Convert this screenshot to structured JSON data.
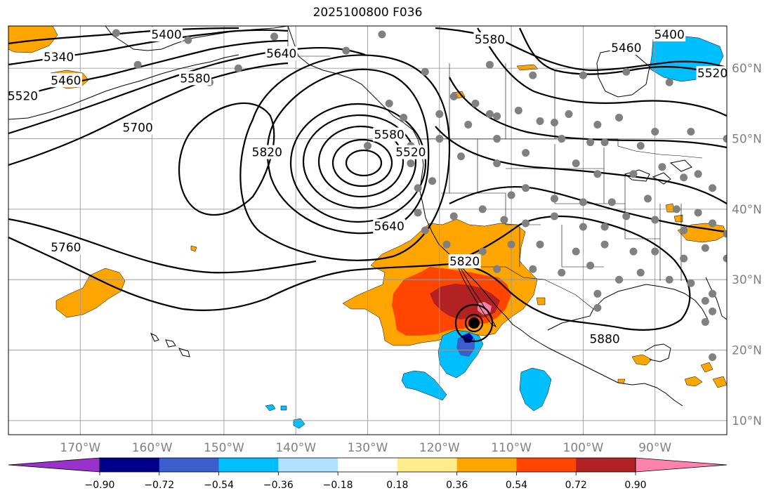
{
  "title": "2025100800 F036",
  "map": {
    "lon_range": [
      -180,
      -80
    ],
    "lat_range": [
      8,
      66
    ],
    "lat_labels": [
      {
        "lat": 60,
        "text": "60°N"
      },
      {
        "lat": 50,
        "text": "50°N"
      },
      {
        "lat": 40,
        "text": "40°N"
      },
      {
        "lat": 30,
        "text": "30°N"
      },
      {
        "lat": 20,
        "text": "20°N"
      },
      {
        "lat": 10,
        "text": "10°N"
      }
    ],
    "lon_labels": [
      {
        "lon": -170,
        "text": "170°W"
      },
      {
        "lon": -160,
        "text": "160°W"
      },
      {
        "lon": -150,
        "text": "150°W"
      },
      {
        "lon": -140,
        "text": "140°W"
      },
      {
        "lon": -130,
        "text": "130°W"
      },
      {
        "lon": -120,
        "text": "120°W"
      },
      {
        "lon": -110,
        "text": "110°W"
      },
      {
        "lon": -100,
        "text": "100°W"
      },
      {
        "lon": -90,
        "text": "90°W"
      }
    ],
    "contour_labels": [
      {
        "text": "5340",
        "lon": -173,
        "lat": 61.5
      },
      {
        "text": "5400",
        "lon": -158,
        "lat": 64.7
      },
      {
        "text": "5400",
        "lon": -88,
        "lat": 64.7
      },
      {
        "text": "5460",
        "lon": -172,
        "lat": 58.2
      },
      {
        "text": "5460",
        "lon": -94,
        "lat": 62.8
      },
      {
        "text": "5520",
        "lon": -178,
        "lat": 56
      },
      {
        "text": "5520",
        "lon": -82,
        "lat": 59.2
      },
      {
        "text": "5580",
        "lon": -113,
        "lat": 64
      },
      {
        "text": "5580",
        "lon": -154,
        "lat": 58.5
      },
      {
        "text": "5580",
        "lon": -127,
        "lat": 50.5
      },
      {
        "text": "5640",
        "lon": -142,
        "lat": 62
      },
      {
        "text": "5640",
        "lon": -127,
        "lat": 37.5
      },
      {
        "text": "5700",
        "lon": -162,
        "lat": 51.5
      },
      {
        "text": "5760",
        "lon": -172,
        "lat": 34.5
      },
      {
        "text": "5820",
        "lon": -144,
        "lat": 48
      },
      {
        "text": "5820",
        "lon": -116.5,
        "lat": 32.5
      },
      {
        "text": "5880",
        "lon": -97,
        "lat": 21.5
      },
      {
        "text": "5520",
        "lon": -124,
        "lat": 48
      }
    ],
    "station_dots": [
      [
        -165,
        65
      ],
      [
        -155,
        64
      ],
      [
        -143,
        64.5
      ],
      [
        -133,
        62.5
      ],
      [
        -128,
        64.8
      ],
      [
        -122,
        59.5
      ],
      [
        -118,
        56
      ],
      [
        -113,
        60.5
      ],
      [
        -107,
        59
      ],
      [
        -100,
        59
      ],
      [
        -94,
        59.5
      ],
      [
        -88,
        58
      ],
      [
        -80,
        59
      ],
      [
        -162,
        60.5
      ],
      [
        -148,
        60
      ],
      [
        -152,
        58
      ],
      [
        -127,
        55
      ],
      [
        -125,
        53
      ],
      [
        -120,
        53.5
      ],
      [
        -115,
        55
      ],
      [
        -113,
        53.5
      ],
      [
        -112,
        53.2
      ],
      [
        -109,
        54
      ],
      [
        -106,
        52.5
      ],
      [
        -104,
        52.3
      ],
      [
        -102,
        53.5
      ],
      [
        -98,
        52
      ],
      [
        -95,
        53
      ],
      [
        -90,
        51
      ],
      [
        -85,
        51
      ],
      [
        -80,
        50
      ],
      [
        -130,
        49
      ],
      [
        -128,
        50.5
      ],
      [
        -124,
        49
      ],
      [
        -120,
        50
      ],
      [
        -116,
        52
      ],
      [
        -112,
        50
      ],
      [
        -103,
        50
      ],
      [
        -99,
        49.5
      ],
      [
        -97,
        49.5
      ],
      [
        -92,
        49
      ],
      [
        -108,
        48
      ],
      [
        -101,
        46.5
      ],
      [
        -98,
        45
      ],
      [
        -93,
        45
      ],
      [
        -89,
        46
      ],
      [
        -86,
        44.5
      ],
      [
        -84,
        45
      ],
      [
        -82,
        43
      ],
      [
        -124,
        46.5
      ],
      [
        -123,
        43
      ],
      [
        -121,
        44
      ],
      [
        -117,
        47.5
      ],
      [
        -112,
        46.5
      ],
      [
        -110,
        42
      ],
      [
        -108,
        43
      ],
      [
        -104,
        41.5
      ],
      [
        -100,
        41
      ],
      [
        -96,
        41
      ],
      [
        -91,
        41.5
      ],
      [
        -87,
        40
      ],
      [
        -84,
        39.5
      ],
      [
        -82,
        38
      ],
      [
        -123,
        39.5
      ],
      [
        -118,
        39
      ],
      [
        -114,
        40
      ],
      [
        -111,
        38.5
      ],
      [
        -108,
        38
      ],
      [
        -104,
        39
      ],
      [
        -100,
        37.5
      ],
      [
        -97,
        37.5
      ],
      [
        -94,
        39
      ],
      [
        -90,
        38.5
      ],
      [
        -86,
        37
      ],
      [
        -80,
        36.5
      ],
      [
        -122,
        37
      ],
      [
        -119,
        35
      ],
      [
        -114,
        34
      ],
      [
        -110,
        35
      ],
      [
        -106,
        35
      ],
      [
        -101,
        34
      ],
      [
        -97,
        35
      ],
      [
        -93,
        34
      ],
      [
        -90,
        34
      ],
      [
        -86,
        33
      ],
      [
        -83,
        34.5
      ],
      [
        -80,
        33
      ],
      [
        -117,
        32
      ],
      [
        -112,
        31.5
      ],
      [
        -107,
        31.5
      ],
      [
        -103,
        31
      ],
      [
        -99,
        32
      ],
      [
        -95,
        30
      ],
      [
        -92,
        31
      ],
      [
        -88,
        30
      ],
      [
        -85,
        29.5
      ],
      [
        -82,
        28
      ],
      [
        -98,
        28
      ],
      [
        -98,
        26
      ],
      [
        -83,
        27
      ],
      [
        -82,
        25.5
      ],
      [
        -83,
        24
      ],
      [
        -82,
        19
      ]
    ],
    "colorbar": {
      "ticks": [
        "−0.90",
        "−0.72",
        "−0.54",
        "−0.36",
        "−0.18",
        "0.18",
        "0.36",
        "0.54",
        "0.72",
        "0.90"
      ],
      "colors": [
        "#9932cc",
        "#00008b",
        "#3a5fcd",
        "#00bfff",
        "#b0e2ff",
        "#ffffff",
        "#ffec8b",
        "#ffa500",
        "#ff4500",
        "#b22222",
        "#ff82ab"
      ]
    }
  }
}
